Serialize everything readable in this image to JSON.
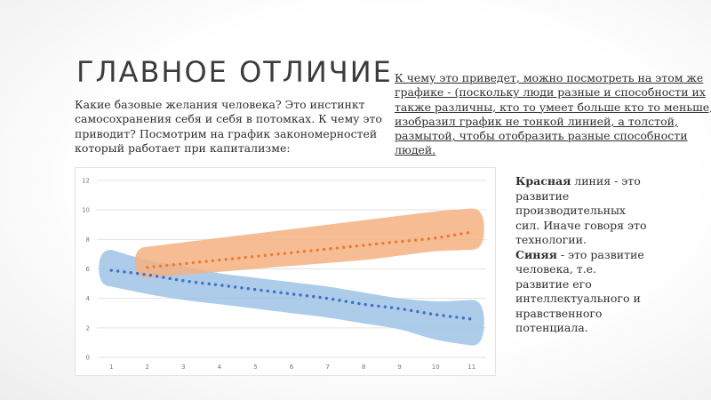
{
  "slide": {
    "title": "ГЛАВНОЕ ОТЛИЧИЕ",
    "left_text": "Какие базовые желания человека? Это инстинкт самосохранения себя и себя в потомках. К чему это приводит? Посмотрим на график закономерностей который работает при капитализме:",
    "right_lines": [
      "К чему это приведет, можно посмотреть на этом же",
      "графике - (поскольку люди разные и способности их",
      "также различны, кто то умеет больше кто то меньше,",
      "изобразил график не тонкой линией, а толстой,",
      "размытой, чтобы отобразить разные способности",
      "людей."
    ],
    "note": {
      "red_bold": "Красная",
      "red_rest": " линия - это развитие производительных сил. Иначе говоря это технологии.",
      "blue_bold": "Синяя",
      "blue_rest": " - это развитие человека, т.е. развитие его интеллектуального и нравственного потенциала."
    }
  },
  "chart_data": {
    "type": "line",
    "x": [
      1,
      2,
      3,
      4,
      5,
      6,
      7,
      8,
      9,
      10,
      11
    ],
    "ylim": [
      0,
      12
    ],
    "yticks": [
      "0",
      "2",
      "4",
      "6",
      "8",
      "10",
      "12"
    ],
    "xticks": [
      "1",
      "2",
      "3",
      "4",
      "5",
      "6",
      "7",
      "8",
      "9",
      "10",
      "11"
    ],
    "grid": true,
    "series": [
      {
        "color": "#ed7d31",
        "band_color": "#f4b183",
        "x": [
          2,
          3,
          4,
          5,
          6,
          7,
          8,
          9,
          10,
          11
        ],
        "values": [
          6.1,
          6.35,
          6.6,
          6.85,
          7.1,
          7.35,
          7.6,
          7.85,
          8.1,
          8.5
        ],
        "band_upper": [
          7.5,
          7.8,
          8.1,
          8.4,
          8.7,
          9.0,
          9.3,
          9.6,
          9.9,
          10.1
        ],
        "band_lower": [
          5.4,
          5.6,
          5.8,
          6.0,
          6.2,
          6.4,
          6.6,
          6.9,
          7.2,
          7.3
        ]
      },
      {
        "color": "#4472c4",
        "band_color": "#9dc3e6",
        "x": [
          1,
          2,
          3,
          4,
          5,
          6,
          7,
          8,
          9,
          10,
          11
        ],
        "values": [
          5.9,
          5.6,
          5.2,
          4.9,
          4.6,
          4.3,
          4.0,
          3.6,
          3.3,
          2.9,
          2.6
        ],
        "band_upper": [
          7.3,
          6.6,
          6.2,
          5.7,
          5.4,
          5.1,
          4.8,
          4.4,
          4.0,
          3.8,
          3.9
        ],
        "band_lower": [
          4.8,
          4.3,
          3.9,
          3.6,
          3.3,
          3.0,
          2.7,
          2.3,
          1.9,
          1.2,
          0.8
        ]
      }
    ]
  }
}
